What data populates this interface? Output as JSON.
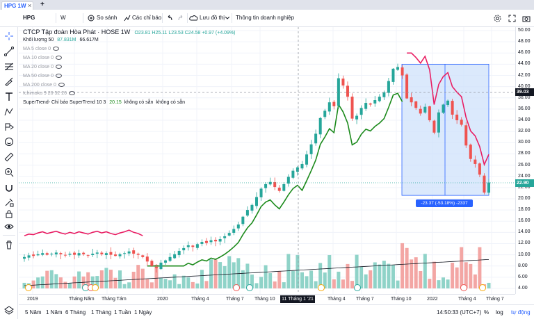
{
  "tab": {
    "label": "HPG 1W",
    "close": "×",
    "add": "+"
  },
  "toolbar": {
    "symbol": "HPG",
    "interval": "W",
    "compare": "So sánh",
    "indicators": "Các chỉ báo",
    "save": "Lưu đồ thị",
    "company_info": "Thông tin doanh nghiệp"
  },
  "legend": {
    "title": "CTCP Tập đoàn Hòa Phát · HOSE  1W",
    "ohlc": "O23.81 H25.11 L23.53 C24.58 +0.97 (+4.09%)",
    "volume_label": "Khối lượng 50",
    "volume_val1": "87.831M",
    "volume_val2": "66.617M",
    "ma": [
      "MA 5 close 0",
      "MA 10 close 0",
      "MA 20 close 0",
      "MA 50 close 0",
      "MA 200 close 0"
    ],
    "ichimoku": "Ichimoku 9 26 52 26",
    "supertrend_prefix": "SuperTrend- Chỉ báo SuperTrend 10 3",
    "supertrend_val": "20.15",
    "supertrend_na1": "không có sẵn",
    "supertrend_na2": "không có sẵn"
  },
  "price_axis": [
    "50.00",
    "48.00",
    "46.00",
    "44.00",
    "42.00",
    "40.00",
    "38.00",
    "36.00",
    "34.00",
    "32.00",
    "30.00",
    "28.00",
    "26.00",
    "24.00",
    "22.00",
    "20.00",
    "18.00",
    "16.00",
    "14.00",
    "12.00",
    "10.00",
    "8.00",
    "6.00",
    "4.00"
  ],
  "price_labels": {
    "crosshair": "39.03",
    "last": "22.90"
  },
  "time_axis": [
    "2019",
    "Tháng Năm",
    "Tháng Tám",
    "2020",
    "Tháng 4",
    "Tháng 7",
    "Tháng 10",
    "Tháng 4",
    "Tháng 7",
    "Tháng 10",
    "2022",
    "Tháng 4",
    "Tháng 7"
  ],
  "crosshair_date": "11 Tháng 1 '21",
  "ruler": "-23.37 (-53.18%) -2337",
  "ranges": [
    "5 Năm",
    "1 Năm",
    "6 Tháng",
    "1 Tháng",
    "1 Tuần",
    "1 Ngày"
  ],
  "clock": "14:50:33 (UTC+7)",
  "bottom_right": {
    "percent": "%",
    "log": "log",
    "auto": "tự động"
  },
  "colors": {
    "up": "#26a69a",
    "down": "#ef5350",
    "supertrend_up": "#1b8a1b",
    "supertrend_down": "#e91e63",
    "accent": "#2962ff",
    "ruler_fill": "#cfe2fb"
  },
  "chart_data": {
    "type": "candlestick",
    "symbol": "HPG",
    "interval": "1W",
    "ylim": [
      4,
      50
    ],
    "closes": [
      9.6,
      9.9,
      9.8,
      10.1,
      10.3,
      10.0,
      10.2,
      10.4,
      10.1,
      9.9,
      10.2,
      10.0,
      10.3,
      10.1,
      9.9,
      10.2,
      10.4,
      10.1,
      10.3,
      10.0,
      9.8,
      10.1,
      10.3,
      10.6,
      10.2,
      10.0,
      9.6,
      8.8,
      8.0,
      7.6,
      8.6,
      9.0,
      9.6,
      10.1,
      10.7,
      11.2,
      11.7,
      11.4,
      11.9,
      12.3,
      12.1,
      12.6,
      12.4,
      12.8,
      13.3,
      13.9,
      14.6,
      15.4,
      16.8,
      18.0,
      18.9,
      20.3,
      21.8,
      22.6,
      23.0,
      22.1,
      21.4,
      22.6,
      23.9,
      25.0,
      25.6,
      26.2,
      27.9,
      29.7,
      31.6,
      34.4,
      35.7,
      37.2,
      36.5,
      41.5,
      40.2,
      38.2,
      34.3,
      34.8,
      36.2,
      37.1,
      36.8,
      37.6,
      38.2,
      39.0,
      41.0,
      43.2,
      43.5,
      42.0,
      37.9,
      37.2,
      36.2,
      35.2,
      36.4,
      34.0,
      31.8,
      35.4,
      36.8,
      37.5,
      35.0,
      34.0,
      33.2,
      29.5,
      27.1,
      26.2,
      24.3,
      21.1,
      22.9
    ]
  }
}
